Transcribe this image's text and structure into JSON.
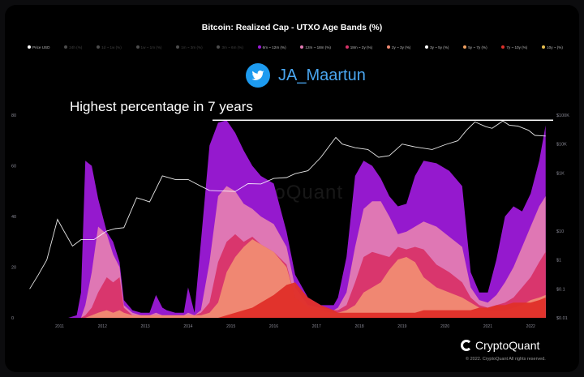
{
  "title": "Bitcoin: Realized Cap - UTXO Age Bands (%)",
  "twitter": {
    "icon": "twitter-bird-icon",
    "handle": "JA_Maartun"
  },
  "annotation": "Highest percentage in 7 years",
  "watermark": "CryptoQuant",
  "branding": {
    "logo": "cryptoquant-logo-icon",
    "name": "CryptoQuant",
    "copyright": "© 2022. CryptoQuant All rights reserved."
  },
  "legend": [
    {
      "label": "Price USD",
      "color": "#ffffff",
      "active": true
    },
    {
      "label": "24h (%)",
      "color": "#d9d9d9",
      "active": false
    },
    {
      "label": "1d ~ 1w (%)",
      "color": "#d9d9d9",
      "active": false
    },
    {
      "label": "1w ~ 1m (%)",
      "color": "#d9d9d9",
      "active": false
    },
    {
      "label": "1m ~ 3m (%)",
      "color": "#d9d9d9",
      "active": false
    },
    {
      "label": "3m ~ 6m (%)",
      "color": "#d9d9d9",
      "active": false
    },
    {
      "label": "6m ~ 12m (%)",
      "color": "#9b1ad6",
      "active": true
    },
    {
      "label": "12m ~ 18m (%)",
      "color": "#e27bb3",
      "active": true
    },
    {
      "label": "18m ~ 2y (%)",
      "color": "#d9336a",
      "active": true
    },
    {
      "label": "2y ~ 3y (%)",
      "color": "#f08a72",
      "active": true
    },
    {
      "label": "3y ~ 5y (%)",
      "color": "#ffffff",
      "active": true
    },
    {
      "label": "5y ~ 7y (%)",
      "color": "#f0a060",
      "active": true
    },
    {
      "label": "7y ~ 10y (%)",
      "color": "#e0302a",
      "active": true
    },
    {
      "label": "10y ~ (%)",
      "color": "#e8c050",
      "active": true
    }
  ],
  "chart_data": {
    "type": "area",
    "title": "Bitcoin: Realized Cap - UTXO Age Bands (%)",
    "stacking": "overlay",
    "x": [
      2010.8,
      2011.0,
      2011.3,
      2011.5,
      2011.7,
      2011.9,
      2012.0,
      2012.1,
      2012.25,
      2012.4,
      2012.6,
      2012.75,
      2012.9,
      2013.0,
      2013.2,
      2013.4,
      2013.6,
      2013.75,
      2013.9,
      2014.0,
      2014.2,
      2014.4,
      2014.5,
      2014.65,
      2014.8,
      2015.0,
      2015.2,
      2015.4,
      2015.6,
      2015.8,
      2016.0,
      2016.2,
      2016.5,
      2016.8,
      2017.0,
      2017.3,
      2017.6,
      2017.9,
      2018.0,
      2018.2,
      2018.4,
      2018.6,
      2018.8,
      2019.0,
      2019.2,
      2019.4,
      2019.6,
      2019.8,
      2020.0,
      2020.3,
      2020.6,
      2020.9,
      2021.1,
      2021.3,
      2021.5,
      2021.7,
      2021.9,
      2022.1,
      2022.3,
      2022.5,
      2022.7,
      2022.85
    ],
    "series": [
      {
        "name": "6m ~ 12m (%)",
        "color": "#9b1ad6",
        "values": [
          0,
          0,
          0,
          0,
          0,
          1,
          10,
          62,
          60,
          47,
          34,
          30,
          22,
          7,
          3,
          2,
          2,
          9,
          4,
          3,
          2,
          2,
          12,
          2,
          30,
          68,
          77,
          78,
          73,
          66,
          60,
          56,
          53,
          34,
          17,
          8,
          5,
          5,
          8,
          24,
          56,
          62,
          60,
          55,
          48,
          44,
          45,
          56,
          62,
          61,
          58,
          52,
          18,
          10,
          10,
          23,
          40,
          44,
          42,
          49,
          62,
          76
        ]
      },
      {
        "name": "12m ~ 18m (%)",
        "color": "#e27bb3",
        "values": [
          0,
          0,
          0,
          0,
          0,
          0,
          0,
          5,
          18,
          36,
          33,
          25,
          20,
          5,
          2,
          1,
          1,
          2,
          1,
          1,
          1,
          1,
          2,
          1,
          3,
          22,
          48,
          52,
          50,
          45,
          43,
          40,
          37,
          28,
          12,
          5,
          4,
          3,
          4,
          10,
          28,
          43,
          46,
          46,
          40,
          33,
          34,
          36,
          38,
          36,
          32,
          28,
          12,
          7,
          6,
          9,
          14,
          20,
          28,
          36,
          44,
          48
        ]
      },
      {
        "name": "18m ~ 2y (%)",
        "color": "#d9336a",
        "values": [
          0,
          0,
          0,
          0,
          0,
          0,
          0,
          1,
          4,
          10,
          16,
          14,
          16,
          4,
          1,
          1,
          1,
          1,
          1,
          1,
          1,
          1,
          1,
          1,
          2,
          6,
          22,
          30,
          33,
          30,
          32,
          29,
          26,
          21,
          8,
          4,
          3,
          3,
          3,
          5,
          14,
          24,
          26,
          25,
          24,
          28,
          27,
          28,
          27,
          21,
          18,
          14,
          8,
          5,
          4,
          5,
          6,
          8,
          12,
          16,
          22,
          26
        ]
      },
      {
        "name": "2y ~ 3y (%)",
        "color": "#f08a72",
        "values": [
          0,
          0,
          0,
          0,
          0,
          0,
          0,
          0,
          1,
          2,
          3,
          2,
          3,
          2,
          1,
          1,
          1,
          1,
          1,
          1,
          1,
          1,
          1,
          1,
          1,
          2,
          6,
          18,
          24,
          28,
          31,
          29,
          26,
          20,
          8,
          4,
          3,
          2,
          2,
          3,
          5,
          10,
          12,
          14,
          19,
          23,
          24,
          22,
          16,
          12,
          10,
          8,
          6,
          4,
          3,
          3,
          3,
          4,
          5,
          7,
          8,
          9
        ]
      },
      {
        "name": "7y ~ 10y (%)",
        "color": "#e0302a",
        "values": [
          0,
          0,
          0,
          0,
          0,
          0,
          0,
          0,
          0,
          0,
          0,
          0,
          0,
          0,
          0,
          0,
          0,
          0,
          0,
          0,
          0,
          0,
          0,
          0,
          0,
          0,
          0,
          1,
          2,
          3,
          4,
          6,
          9,
          13,
          14,
          8,
          5,
          3,
          2,
          2,
          2,
          2,
          2,
          2,
          2,
          2,
          2,
          2,
          3,
          3,
          3,
          3,
          3,
          4,
          4,
          5,
          5,
          6,
          6,
          6,
          7,
          8
        ]
      }
    ],
    "price_usd": {
      "name": "Price USD",
      "color": "#ffffff",
      "scale": "log",
      "x": [
        2010.8,
        2011.0,
        2011.2,
        2011.45,
        2011.6,
        2011.8,
        2012.0,
        2012.3,
        2012.6,
        2012.8,
        2013.0,
        2013.3,
        2013.45,
        2013.6,
        2013.9,
        2014.2,
        2014.5,
        2014.8,
        2015.0,
        2015.3,
        2015.6,
        2015.9,
        2016.2,
        2016.5,
        2016.8,
        2017.0,
        2017.3,
        2017.6,
        2017.95,
        2018.1,
        2018.4,
        2018.7,
        2018.95,
        2019.2,
        2019.5,
        2019.8,
        2020.2,
        2020.5,
        2020.8,
        2021.0,
        2021.2,
        2021.45,
        2021.6,
        2021.85,
        2022.0,
        2022.2,
        2022.45,
        2022.6,
        2022.85
      ],
      "values": [
        0.1,
        0.3,
        1,
        25,
        10,
        3,
        5,
        5,
        10,
        12,
        13,
        140,
        120,
        100,
        800,
        600,
        600,
        350,
        250,
        240,
        230,
        430,
        420,
        650,
        700,
        950,
        1200,
        3500,
        17000,
        10000,
        7500,
        6500,
        3500,
        4000,
        10000,
        8000,
        6500,
        9500,
        13000,
        30000,
        58000,
        40000,
        35000,
        63000,
        45000,
        42000,
        30000,
        20000,
        19000
      ]
    },
    "y_axis_left": {
      "range": [
        0,
        80
      ],
      "ticks": [
        "0",
        "20",
        "40",
        "60",
        "80"
      ]
    },
    "y_axis_right": {
      "scale": "log",
      "ticks": [
        "$0.01",
        "$0.1",
        "$1",
        "$10",
        "$1K",
        "$10K",
        "$100K"
      ]
    },
    "x_ticks": [
      "2011",
      "2012",
      "2013",
      "2014",
      "2015",
      "2016",
      "2017",
      "2018",
      "2019",
      "2020",
      "2021",
      "2022"
    ],
    "reference_line": {
      "value": 78
    }
  }
}
